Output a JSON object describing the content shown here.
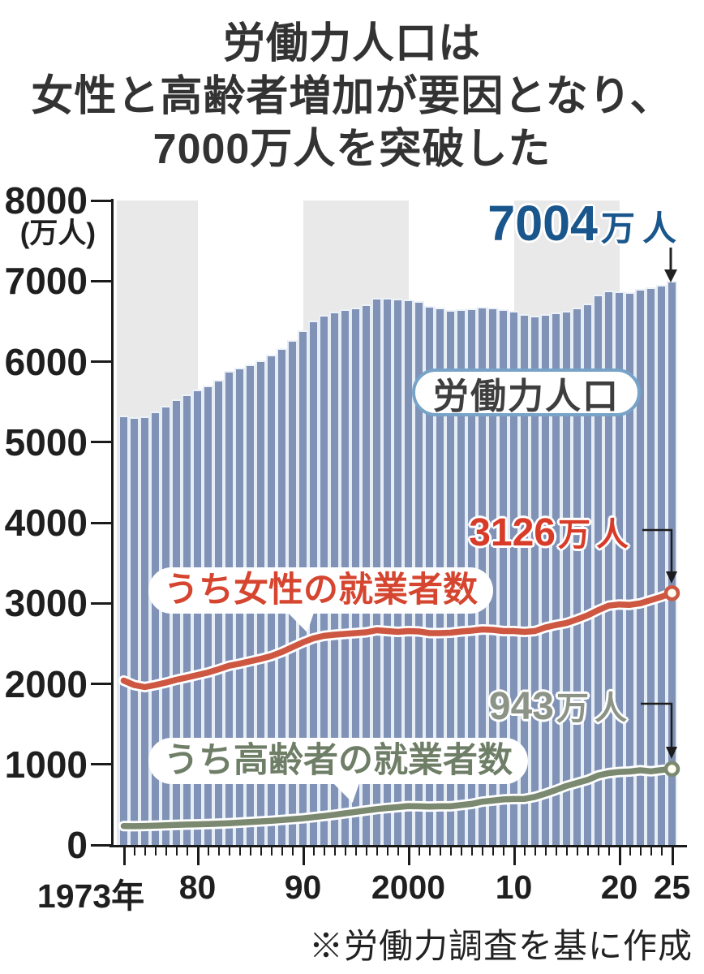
{
  "title": {
    "line1": "労働力人口は",
    "line2": "女性と高齢者増加が要因となり、",
    "line3": "7000万人を突破した"
  },
  "y_axis": {
    "unit": "(万人)",
    "ticks": [
      "8000",
      "7000",
      "6000",
      "5000",
      "4000",
      "3000",
      "2000",
      "1000",
      "0"
    ]
  },
  "x_axis": {
    "labels": [
      {
        "text": "1973年",
        "year": 1973
      },
      {
        "text": "80",
        "year": 1980
      },
      {
        "text": "90",
        "year": 1990
      },
      {
        "text": "2000",
        "year": 2000
      },
      {
        "text": "10",
        "year": 2010
      },
      {
        "text": "20",
        "year": 2020
      },
      {
        "text": "25",
        "year": 2025
      }
    ]
  },
  "series_labels": {
    "labor": "労働力人口",
    "women": "うち女性の就業者数",
    "elderly": "うち高齢者の就業者数"
  },
  "annotations": {
    "peak": {
      "num": "7004",
      "unit": "万人"
    },
    "women": {
      "num": "3126",
      "unit": "万人"
    },
    "elderly": {
      "num": "943",
      "unit": "万人"
    }
  },
  "source": "※労働力調査を基に作成",
  "colors": {
    "bar": "#8093b7",
    "bar_gap": "#e6edf5",
    "band": "#e9e9e9",
    "women_line": "#cd5741",
    "women_text": "#d83b28",
    "elderly_line": "#7b8970",
    "elderly_text": "#8c9488",
    "peak_blue": "#19568c",
    "axis": "#1a1a1a"
  },
  "chart_data": {
    "type": "composite",
    "title": "労働力人口は女性と高齢者増加が要因となり、7000万人を突破した",
    "ylabel": "(万人)",
    "ylim": [
      0,
      8000
    ],
    "y_tick_step": 1000,
    "grid": false,
    "bands_years": [
      [
        1973,
        1980
      ],
      [
        1990,
        2000
      ],
      [
        2010,
        2020
      ]
    ],
    "x": [
      1973,
      1974,
      1975,
      1976,
      1977,
      1978,
      1979,
      1980,
      1981,
      1982,
      1983,
      1984,
      1985,
      1986,
      1987,
      1988,
      1989,
      1990,
      1991,
      1992,
      1993,
      1994,
      1995,
      1996,
      1997,
      1998,
      1999,
      2000,
      2001,
      2002,
      2003,
      2004,
      2005,
      2006,
      2007,
      2008,
      2009,
      2010,
      2011,
      2012,
      2013,
      2014,
      2015,
      2016,
      2017,
      2018,
      2019,
      2020,
      2021,
      2022,
      2023,
      2024,
      2025
    ],
    "series": [
      {
        "name": "労働力人口",
        "type": "bar",
        "color": "#8093b7",
        "values": [
          5326,
          5310,
          5323,
          5378,
          5452,
          5532,
          5596,
          5650,
          5707,
          5774,
          5889,
          5927,
          5963,
          6020,
          6084,
          6166,
          6270,
          6384,
          6505,
          6578,
          6615,
          6645,
          6666,
          6711,
          6787,
          6793,
          6779,
          6766,
          6752,
          6689,
          6666,
          6642,
          6651,
          6664,
          6684,
          6674,
          6650,
          6632,
          6591,
          6565,
          6593,
          6609,
          6625,
          6673,
          6720,
          6830,
          6886,
          6868,
          6860,
          6902,
          6925,
          6957,
          7004
        ]
      },
      {
        "name": "うち女性の就業者数",
        "type": "line",
        "color": "#cd5741",
        "values": [
          2040,
          1985,
          1960,
          1985,
          2015,
          2050,
          2080,
          2110,
          2140,
          2180,
          2225,
          2250,
          2280,
          2310,
          2345,
          2395,
          2455,
          2515,
          2565,
          2595,
          2610,
          2620,
          2630,
          2640,
          2665,
          2655,
          2645,
          2655,
          2650,
          2630,
          2630,
          2635,
          2650,
          2660,
          2675,
          2670,
          2655,
          2655,
          2645,
          2655,
          2700,
          2730,
          2755,
          2800,
          2850,
          2915,
          2970,
          2985,
          2980,
          3000,
          3040,
          3080,
          3126
        ]
      },
      {
        "name": "うち高齢者の就業者数",
        "type": "line",
        "color": "#7b8970",
        "values": [
          235,
          233,
          236,
          240,
          245,
          250,
          253,
          256,
          260,
          265,
          270,
          277,
          285,
          292,
          300,
          310,
          320,
          330,
          345,
          360,
          375,
          393,
          410,
          428,
          445,
          458,
          470,
          483,
          480,
          477,
          480,
          480,
          495,
          510,
          537,
          550,
          565,
          570,
          571,
          596,
          637,
          682,
          732,
          770,
          807,
          862,
          892,
          906,
          912,
          927,
          914,
          930,
          943
        ]
      }
    ]
  }
}
